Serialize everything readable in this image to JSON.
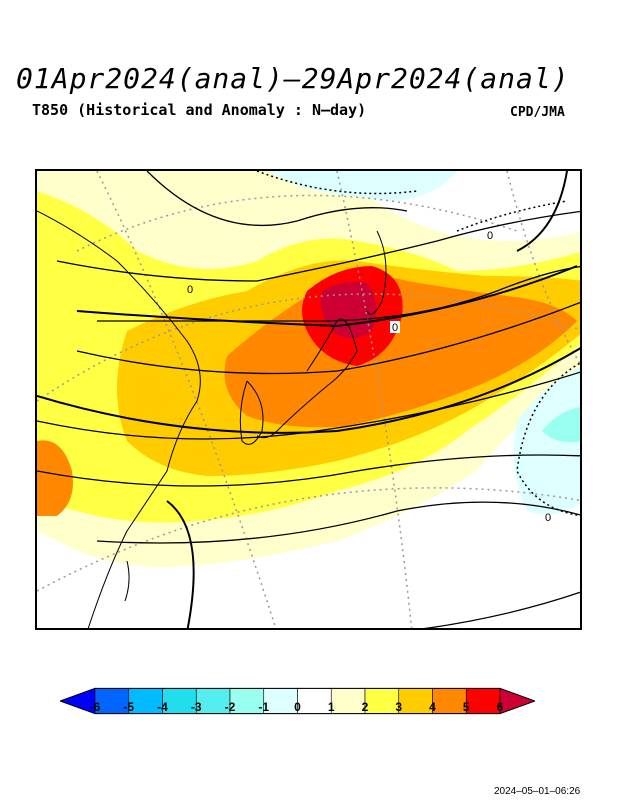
{
  "header": {
    "title": "01Apr2024(anal)–29Apr2024(anal)",
    "subtitle": "T850 (Historical and Anomaly : N–day)",
    "agency": "CPD/JMA"
  },
  "map": {
    "contour_labels": [
      "0",
      "0",
      "0",
      "0"
    ]
  },
  "legend": {
    "labels": [
      "-6",
      "-5",
      "-4",
      "-3",
      "-2",
      "-1",
      "0",
      "1",
      "2",
      "3",
      "4",
      "5",
      "6"
    ],
    "colors": [
      "#0000ff",
      "#0066ff",
      "#00bbff",
      "#22ddee",
      "#55eeee",
      "#99ffee",
      "#ddffff",
      "#ffffff",
      "#ffffcc",
      "#ffff44",
      "#ffcc00",
      "#ff8800",
      "#ff0000",
      "#cc0033"
    ]
  },
  "footer": {
    "timestamp": "2024–05–01–06:26"
  }
}
